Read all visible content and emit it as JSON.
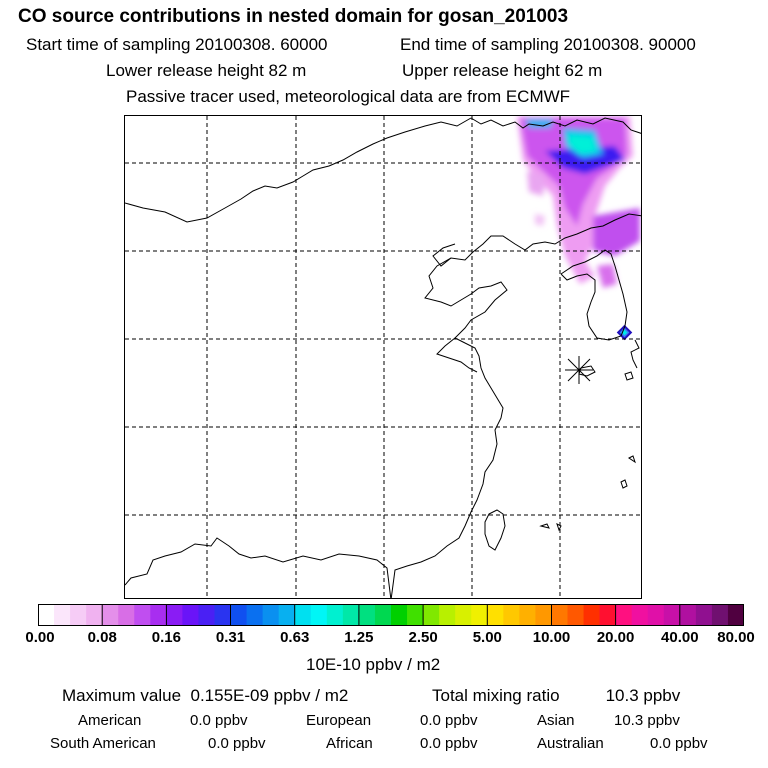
{
  "header": {
    "title": "CO  source contributions in nested domain for gosan_201003",
    "start_time": "Start time of sampling 20100308. 60000",
    "end_time": "End time of sampling 20100308. 90000",
    "lower_height": "Lower release height   82 m",
    "upper_height": "Upper release height   62 m",
    "note": "Passive tracer used, meteorological data are from ECMWF"
  },
  "colorbar": {
    "ticks": [
      "0.00",
      "0.08",
      "0.16",
      "0.31",
      "0.63",
      "1.25",
      "2.50",
      "5.00",
      "10.00",
      "20.00",
      "40.00",
      "80.00"
    ],
    "unit": "10E-10 ppbv / m2",
    "colors": [
      "#ffffff",
      "#fbe6fb",
      "#f6ccf6",
      "#f0b2f0",
      "#e48fea",
      "#d86ee6",
      "#c04ef0",
      "#a82ef0",
      "#8a1cf4",
      "#6a14f8",
      "#4a20f4",
      "#2a34f0",
      "#1050f0",
      "#0a70f0",
      "#0a90f0",
      "#08b0f0",
      "#00e0f0",
      "#00f6f6",
      "#00f0d0",
      "#00e8a8",
      "#00e080",
      "#00d850",
      "#00d000",
      "#40e000",
      "#80e800",
      "#b8f000",
      "#d8f000",
      "#f0f000",
      "#ffe000",
      "#ffc800",
      "#ffb000",
      "#ff9800",
      "#ff7800",
      "#ff5800",
      "#ff3000",
      "#ff1030",
      "#ff1080",
      "#f010a0",
      "#e010a8",
      "#c810a8",
      "#b010a0",
      "#901090",
      "#701070",
      "#500040"
    ]
  },
  "summary": {
    "max_label": "Maximum value",
    "max_value": "0.155E-09 ppbv / m2",
    "total_label": "Total mixing ratio",
    "total_value": "10.3 ppbv",
    "regions": [
      {
        "name": "American",
        "value": "0.0 ppbv"
      },
      {
        "name": "European",
        "value": "0.0 ppbv"
      },
      {
        "name": "Asian",
        "value": "10.3 ppbv"
      },
      {
        "name": "South American",
        "value": "0.0 ppbv"
      },
      {
        "name": "African",
        "value": "0.0 ppbv"
      },
      {
        "name": "Australian",
        "value": "0.0 ppbv"
      }
    ]
  }
}
